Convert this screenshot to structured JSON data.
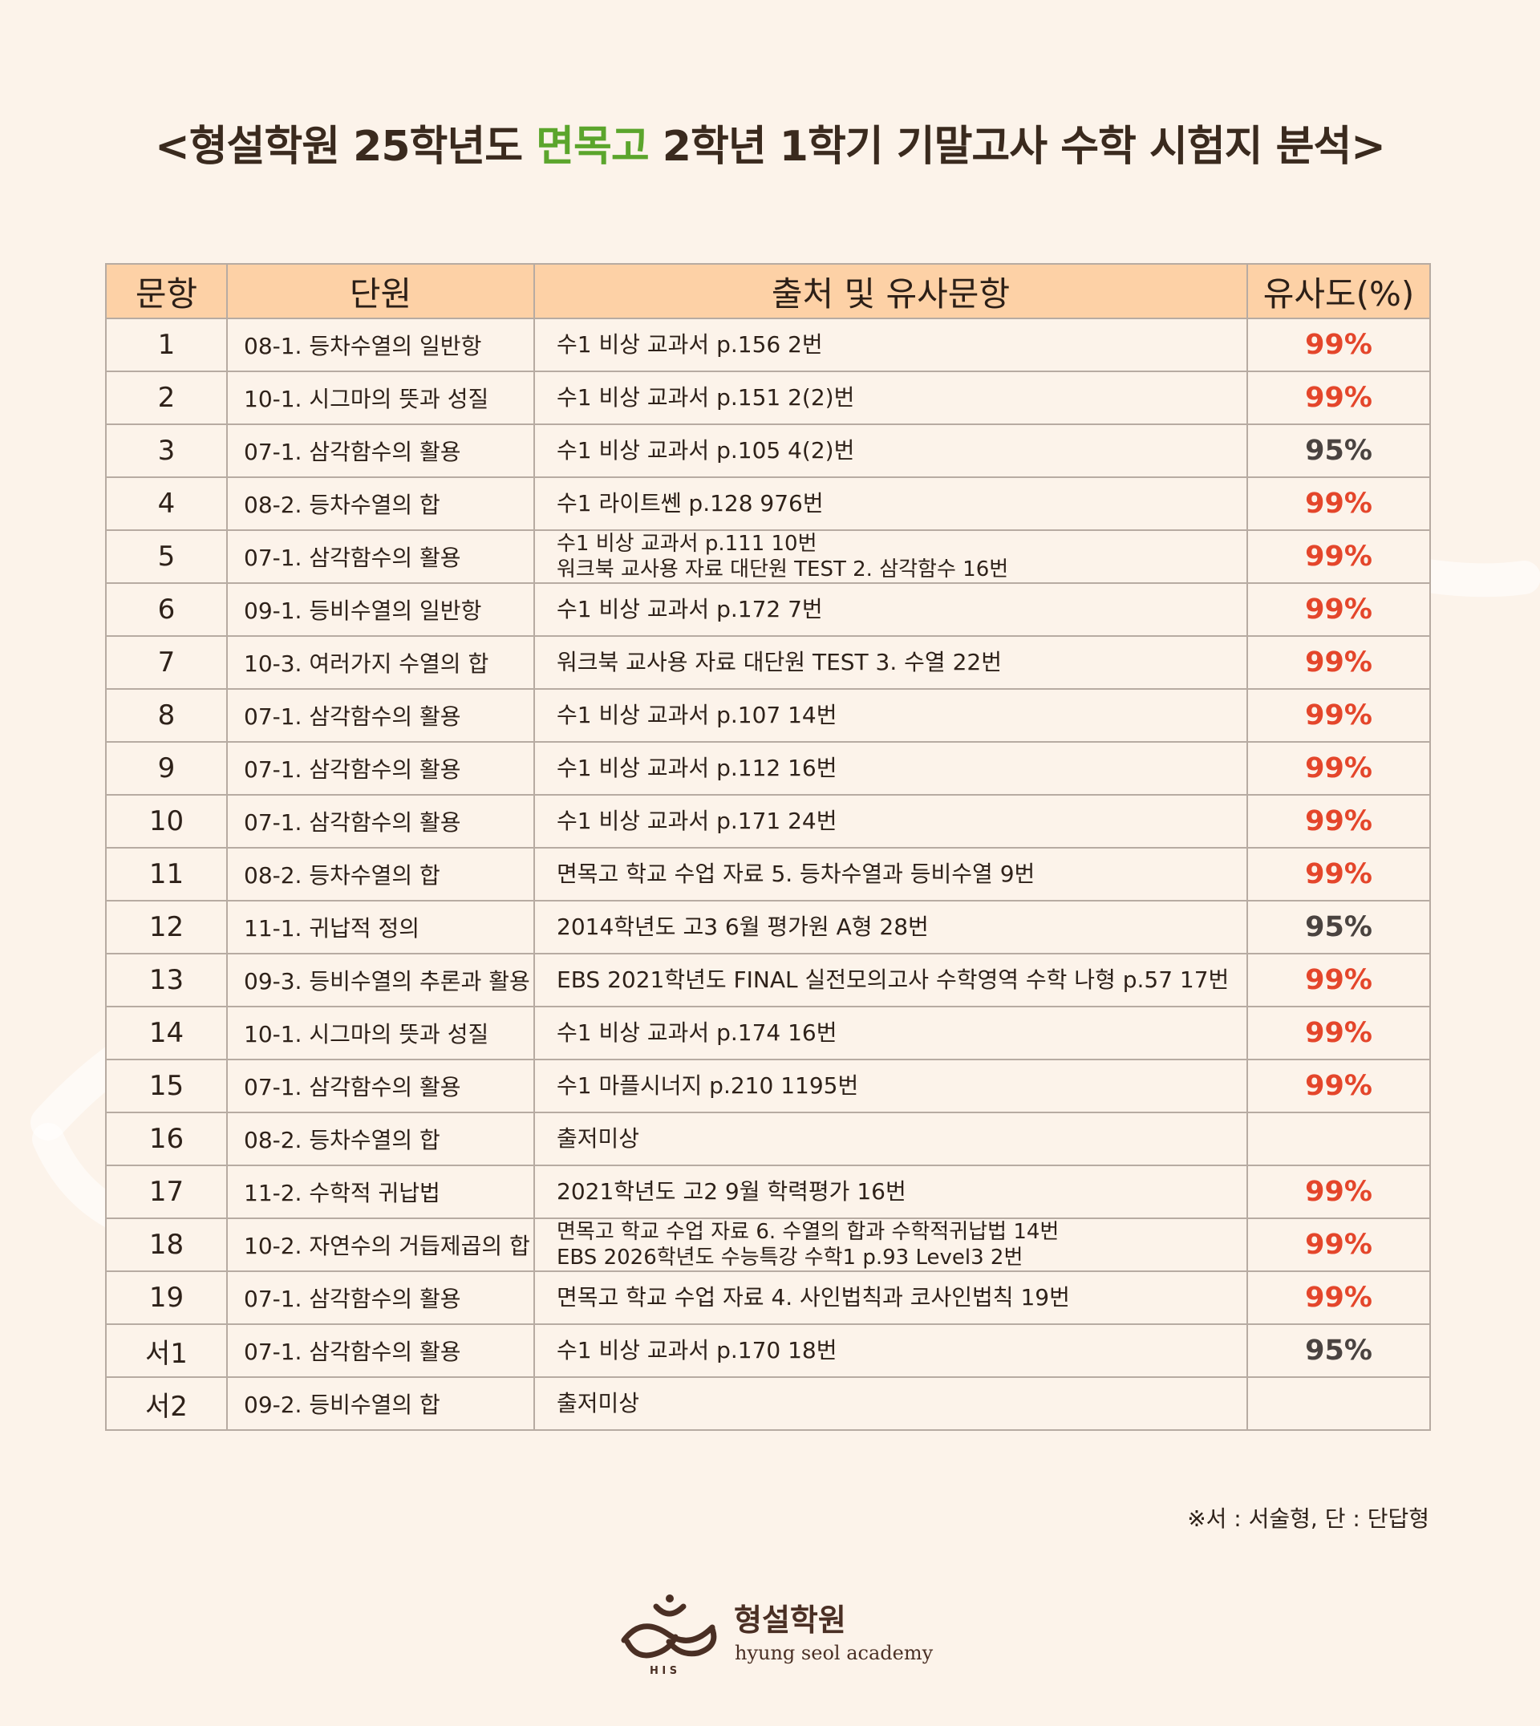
{
  "title": {
    "prefix": "<형설학원 25학년도 ",
    "highlight": "면목고",
    "suffix": " 2학년 1학기 기말고사 수학 시험지 분석>"
  },
  "colors": {
    "highlight": "#5ba52c",
    "header_bg": "#fdd1a6",
    "accent_red": "#e4462b",
    "background": "#fcf3ea"
  },
  "table": {
    "headers": [
      "문항",
      "단원",
      "출처 및 유사문항",
      "유사도(%)"
    ],
    "rows": [
      {
        "num": "1",
        "unit": "08-1. 등차수열의 일반항",
        "source": [
          "수1 비상 교과서 p.156 2번"
        ],
        "similarity": "99%"
      },
      {
        "num": "2",
        "unit": "10-1. 시그마의 뜻과 성질",
        "source": [
          "수1 비상 교과서 p.151 2(2)번"
        ],
        "similarity": "99%"
      },
      {
        "num": "3",
        "unit": "07-1. 삼각함수의 활용",
        "source": [
          "수1 비상 교과서 p.105 4(2)번"
        ],
        "similarity": "95%"
      },
      {
        "num": "4",
        "unit": "08-2. 등차수열의 합",
        "source": [
          "수1 라이트쎈 p.128 976번"
        ],
        "similarity": "99%"
      },
      {
        "num": "5",
        "unit": "07-1. 삼각함수의 활용",
        "source": [
          "수1 비상 교과서 p.111 10번",
          "워크북 교사용 자료 대단원 TEST 2. 삼각함수 16번"
        ],
        "similarity": "99%"
      },
      {
        "num": "6",
        "unit": "09-1. 등비수열의 일반항",
        "source": [
          "수1 비상 교과서 p.172 7번"
        ],
        "similarity": "99%"
      },
      {
        "num": "7",
        "unit": "10-3. 여러가지 수열의 합",
        "source": [
          "워크북 교사용 자료 대단원 TEST 3. 수열 22번"
        ],
        "similarity": "99%"
      },
      {
        "num": "8",
        "unit": "07-1. 삼각함수의 활용",
        "source": [
          "수1 비상 교과서 p.107 14번"
        ],
        "similarity": "99%"
      },
      {
        "num": "9",
        "unit": "07-1. 삼각함수의 활용",
        "source": [
          "수1 비상 교과서 p.112 16번"
        ],
        "similarity": "99%"
      },
      {
        "num": "10",
        "unit": "07-1. 삼각함수의 활용",
        "source": [
          "수1 비상 교과서 p.171 24번"
        ],
        "similarity": "99%"
      },
      {
        "num": "11",
        "unit": "08-2. 등차수열의 합",
        "source": [
          "면목고 학교 수업 자료 5. 등차수열과 등비수열 9번"
        ],
        "similarity": "99%"
      },
      {
        "num": "12",
        "unit": "11-1. 귀납적 정의",
        "source": [
          "2014학년도 고3 6월 평가원 A형 28번"
        ],
        "similarity": "95%"
      },
      {
        "num": "13",
        "unit": "09-3. 등비수열의 추론과 활용",
        "source": [
          "EBS 2021학년도 FINAL 실전모의고사 수학영역 수학 나형 p.57 17번"
        ],
        "similarity": "99%"
      },
      {
        "num": "14",
        "unit": "10-1. 시그마의 뜻과 성질",
        "source": [
          "수1 비상 교과서 p.174 16번"
        ],
        "similarity": "99%"
      },
      {
        "num": "15",
        "unit": "07-1. 삼각함수의 활용",
        "source": [
          "수1 마플시너지 p.210 1195번"
        ],
        "similarity": "99%"
      },
      {
        "num": "16",
        "unit": "08-2. 등차수열의 합",
        "source": [
          "출저미상"
        ],
        "similarity": ""
      },
      {
        "num": "17",
        "unit": "11-2. 수학적 귀납법",
        "source": [
          "2021학년도 고2 9월 학력평가 16번"
        ],
        "similarity": "99%"
      },
      {
        "num": "18",
        "unit": "10-2. 자연수의 거듭제곱의 합",
        "source": [
          "면목고 학교 수업 자료 6. 수열의 합과 수학적귀납법 14번",
          "EBS 2026학년도 수능특강 수학1 p.93 Level3 2번"
        ],
        "similarity": "99%"
      },
      {
        "num": "19",
        "unit": "07-1. 삼각함수의 활용",
        "source": [
          "면목고 학교 수업 자료 4. 사인법칙과 코사인법칙 19번"
        ],
        "similarity": "99%"
      },
      {
        "num": "서1",
        "unit": "07-1. 삼각함수의 활용",
        "source": [
          "수1 비상 교과서 p.170 18번"
        ],
        "similarity": "95%"
      },
      {
        "num": "서2",
        "unit": "09-2. 등비수열의 합",
        "source": [
          "출저미상"
        ],
        "similarity": ""
      }
    ]
  },
  "note": "※서 : 서술형, 단 : 단답형",
  "logo": {
    "name": "형설학원",
    "subtitle": "hyung seol academy",
    "icon": "hyungseol-logo-icon"
  }
}
